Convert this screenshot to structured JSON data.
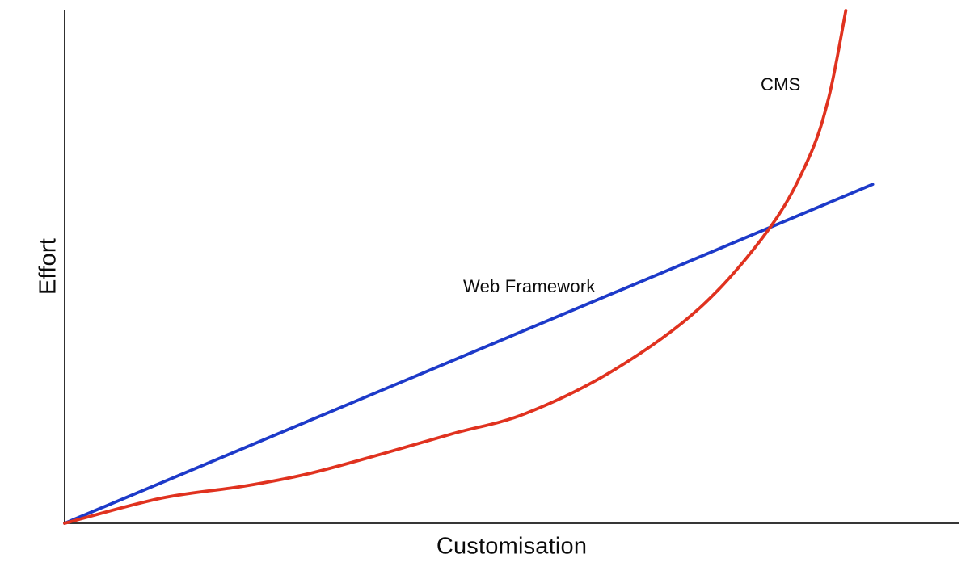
{
  "chart_data": {
    "type": "line",
    "title": "",
    "xlabel": "Customisation",
    "ylabel": "Effort",
    "x_range": [
      0,
      100
    ],
    "y_range": [
      0,
      100
    ],
    "grid": false,
    "tick_labels": "none",
    "legend": "inline-annotations",
    "axis_color": "#1a1a1a",
    "background_color": "#ffffff",
    "text_color": "#0b0b0b",
    "series": [
      {
        "name": "Web Framework",
        "color": "#1d3ac9",
        "shape": "straight",
        "description": "linear effort growth with customisation",
        "points": [
          [
            0,
            0
          ],
          [
            90.3,
            66.1
          ]
        ]
      },
      {
        "name": "CMS",
        "color": "#e0321f",
        "shape": "smooth",
        "description": "low initial effort, exponential growth at high customisation; crosses Web Framework line at about x=78.8, y=57.6",
        "points": [
          [
            0,
            0
          ],
          [
            10.8,
            4.9
          ],
          [
            19.9,
            7.2
          ],
          [
            27.1,
            9.6
          ],
          [
            35.2,
            13.4
          ],
          [
            43.4,
            17.5
          ],
          [
            51.5,
            21.4
          ],
          [
            61.4,
            29.9
          ],
          [
            71.1,
            42.2
          ],
          [
            78.8,
            57.6
          ],
          [
            83.1,
            71.0
          ],
          [
            85.4,
            83.1
          ],
          [
            87.3,
            100
          ]
        ]
      }
    ]
  }
}
